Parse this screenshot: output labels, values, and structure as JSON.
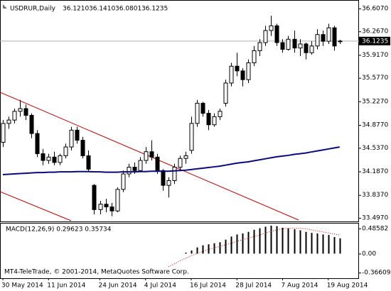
{
  "chart_data": {
    "type": "candlestick",
    "title": "USDRUR,Daily",
    "ohlc_labels": [
      "36.1210",
      "36.1410",
      "36.0801",
      "36.1235"
    ],
    "current_price_label": "36.1235",
    "copyright": "MT4-TeleTrade, © 2001-2014, MetaQuotes Software Corp.",
    "categories": [
      "30 May 2014",
      null,
      null,
      null,
      null,
      null,
      null,
      null,
      "11 Jun 2014",
      null,
      null,
      null,
      null,
      null,
      null,
      null,
      null,
      "24 Jun 2014",
      null,
      null,
      null,
      null,
      null,
      null,
      null,
      "4 Jul 2014",
      null,
      null,
      null,
      null,
      null,
      null,
      null,
      "16 Jul 2014",
      null,
      null,
      null,
      null,
      null,
      null,
      null,
      "28 Jul 2014",
      null,
      null,
      null,
      null,
      null,
      null,
      null,
      "7 Aug 2014",
      null,
      null,
      null,
      null,
      null,
      null,
      null,
      "19 Aug 2014",
      null,
      null
    ],
    "open": [
      34.62,
      34.9,
      34.95,
      35.08,
      35.12,
      35.02,
      34.75,
      34.45,
      34.35,
      34.4,
      34.32,
      34.42,
      34.55,
      34.8,
      34.65,
      34.42,
      33.98,
      33.62,
      33.7,
      33.66,
      33.6,
      33.92,
      34.15,
      34.25,
      34.2,
      34.35,
      34.48,
      34.4,
      34.2,
      33.98,
      34.05,
      34.25,
      34.38,
      34.5,
      34.9,
      35.2,
      35.05,
      34.88,
      35.0,
      35.2,
      35.5,
      35.75,
      35.68,
      35.55,
      35.8,
      35.98,
      36.1,
      36.28,
      36.35,
      36.1,
      36.0,
      36.15,
      36.02,
      36.08,
      35.95,
      36.05,
      36.22,
      36.12,
      36.32,
      36.121
    ],
    "high": [
      34.95,
      35.0,
      35.12,
      35.25,
      35.18,
      35.05,
      34.8,
      34.52,
      34.45,
      34.48,
      34.45,
      34.6,
      34.85,
      34.85,
      34.7,
      34.5,
      34.0,
      33.75,
      33.78,
      33.72,
      33.95,
      34.2,
      34.3,
      34.32,
      34.4,
      34.55,
      34.65,
      34.45,
      34.22,
      34.1,
      34.3,
      34.42,
      34.48,
      35.0,
      35.25,
      35.22,
      35.1,
      35.05,
      35.12,
      35.55,
      35.8,
      35.95,
      35.72,
      35.85,
      36.05,
      36.15,
      36.35,
      36.5,
      36.38,
      36.15,
      36.2,
      36.28,
      36.15,
      36.1,
      36.12,
      36.3,
      36.28,
      36.38,
      36.35,
      36.141
    ],
    "low": [
      34.55,
      34.82,
      34.9,
      35.0,
      34.95,
      34.68,
      34.4,
      34.28,
      34.3,
      34.28,
      34.28,
      34.38,
      34.5,
      34.6,
      34.38,
      34.18,
      33.55,
      33.55,
      33.58,
      33.52,
      33.58,
      33.88,
      34.1,
      34.15,
      34.18,
      34.3,
      34.35,
      34.15,
      33.9,
      33.8,
      34.0,
      34.2,
      34.3,
      34.45,
      34.85,
      35.0,
      34.8,
      34.85,
      34.95,
      35.15,
      35.45,
      35.6,
      35.45,
      35.5,
      35.75,
      35.9,
      36.05,
      36.2,
      36.05,
      35.95,
      35.98,
      35.95,
      35.9,
      35.85,
      35.92,
      36.0,
      36.05,
      36.08,
      35.98,
      36.0801
    ],
    "close": [
      34.9,
      34.95,
      35.08,
      35.12,
      35.02,
      34.75,
      34.45,
      34.35,
      34.4,
      34.32,
      34.42,
      34.55,
      34.8,
      34.65,
      34.42,
      34.22,
      33.62,
      33.7,
      33.66,
      33.6,
      33.92,
      34.15,
      34.25,
      34.2,
      34.35,
      34.48,
      34.4,
      34.2,
      33.98,
      34.05,
      34.25,
      34.38,
      34.42,
      34.9,
      35.2,
      35.05,
      34.88,
      35.0,
      35.08,
      35.5,
      35.75,
      35.68,
      35.55,
      35.8,
      35.98,
      36.1,
      36.28,
      36.35,
      36.1,
      36.0,
      36.15,
      36.02,
      36.08,
      35.95,
      36.05,
      36.22,
      36.12,
      36.32,
      36.05,
      36.1235
    ],
    "candle_color": "#000000",
    "ma": {
      "color": "#0a0a78",
      "values": [
        34.14,
        34.145,
        34.15,
        34.155,
        34.16,
        34.165,
        34.17,
        34.17,
        34.175,
        34.175,
        34.18,
        34.18,
        34.18,
        34.185,
        34.185,
        34.185,
        34.18,
        34.18,
        34.175,
        34.175,
        34.175,
        34.18,
        34.18,
        34.18,
        34.185,
        34.185,
        34.19,
        34.19,
        34.19,
        34.19,
        34.195,
        34.2,
        34.205,
        34.215,
        34.225,
        34.235,
        34.245,
        34.255,
        34.265,
        34.28,
        34.295,
        34.31,
        34.32,
        34.33,
        34.345,
        34.36,
        34.375,
        34.39,
        34.405,
        34.415,
        34.425,
        34.44,
        34.45,
        34.46,
        34.475,
        34.49,
        34.505,
        34.52,
        34.535,
        34.55
      ]
    },
    "ylim": [
      33.444,
      36.712
    ],
    "yticks": [
      {
        "value": 36.607,
        "label": "36.6070"
      },
      {
        "value": 36.267,
        "label": "36.2670"
      },
      {
        "value": 35.917,
        "label": "35.9170"
      },
      {
        "value": 35.577,
        "label": "35.5770"
      },
      {
        "value": 35.227,
        "label": "35.2270"
      },
      {
        "value": 34.877,
        "label": "34.8770"
      },
      {
        "value": 34.537,
        "label": "34.5370"
      },
      {
        "value": 34.187,
        "label": "34.1870"
      },
      {
        "value": 33.837,
        "label": "33.8370"
      },
      {
        "value": 33.497,
        "label": "33.4970"
      }
    ],
    "macd": {
      "title": "MACD(12,26,9) 0.29623 0.35734",
      "histogram_color": "#000000",
      "signal_color": "#d00000",
      "histogram": [
        null,
        null,
        null,
        null,
        null,
        null,
        null,
        null,
        null,
        null,
        null,
        null,
        null,
        null,
        null,
        null,
        null,
        null,
        null,
        null,
        null,
        null,
        null,
        null,
        null,
        null,
        null,
        null,
        null,
        null,
        null,
        null,
        0.02,
        0.06,
        0.12,
        0.16,
        0.18,
        0.2,
        0.22,
        0.27,
        0.33,
        0.37,
        0.39,
        0.42,
        0.46,
        0.49,
        0.52,
        0.54,
        0.53,
        0.5,
        0.49,
        0.47,
        0.45,
        0.42,
        0.4,
        0.39,
        0.37,
        0.36,
        0.32,
        0.29623
      ],
      "signal": [
        null,
        null,
        null,
        null,
        null,
        null,
        null,
        null,
        null,
        null,
        null,
        null,
        null,
        null,
        null,
        null,
        null,
        null,
        null,
        null,
        null,
        null,
        null,
        null,
        null,
        null,
        null,
        null,
        null,
        -0.25,
        -0.2,
        -0.14,
        -0.09,
        -0.04,
        0.0,
        0.04,
        0.08,
        0.11,
        0.14,
        0.17,
        0.2,
        0.24,
        0.27,
        0.3,
        0.33,
        0.36,
        0.4,
        0.43,
        0.46,
        0.48,
        0.49,
        0.49,
        0.49,
        0.48,
        0.46,
        0.44,
        0.42,
        0.4,
        0.38,
        0.35734
      ],
      "ylim": [
        -0.474,
        0.58
      ],
      "yticks": [
        0.48582,
        {
          "value": 0,
          "label": "0.00"
        },
        -0.36609
      ]
    }
  }
}
